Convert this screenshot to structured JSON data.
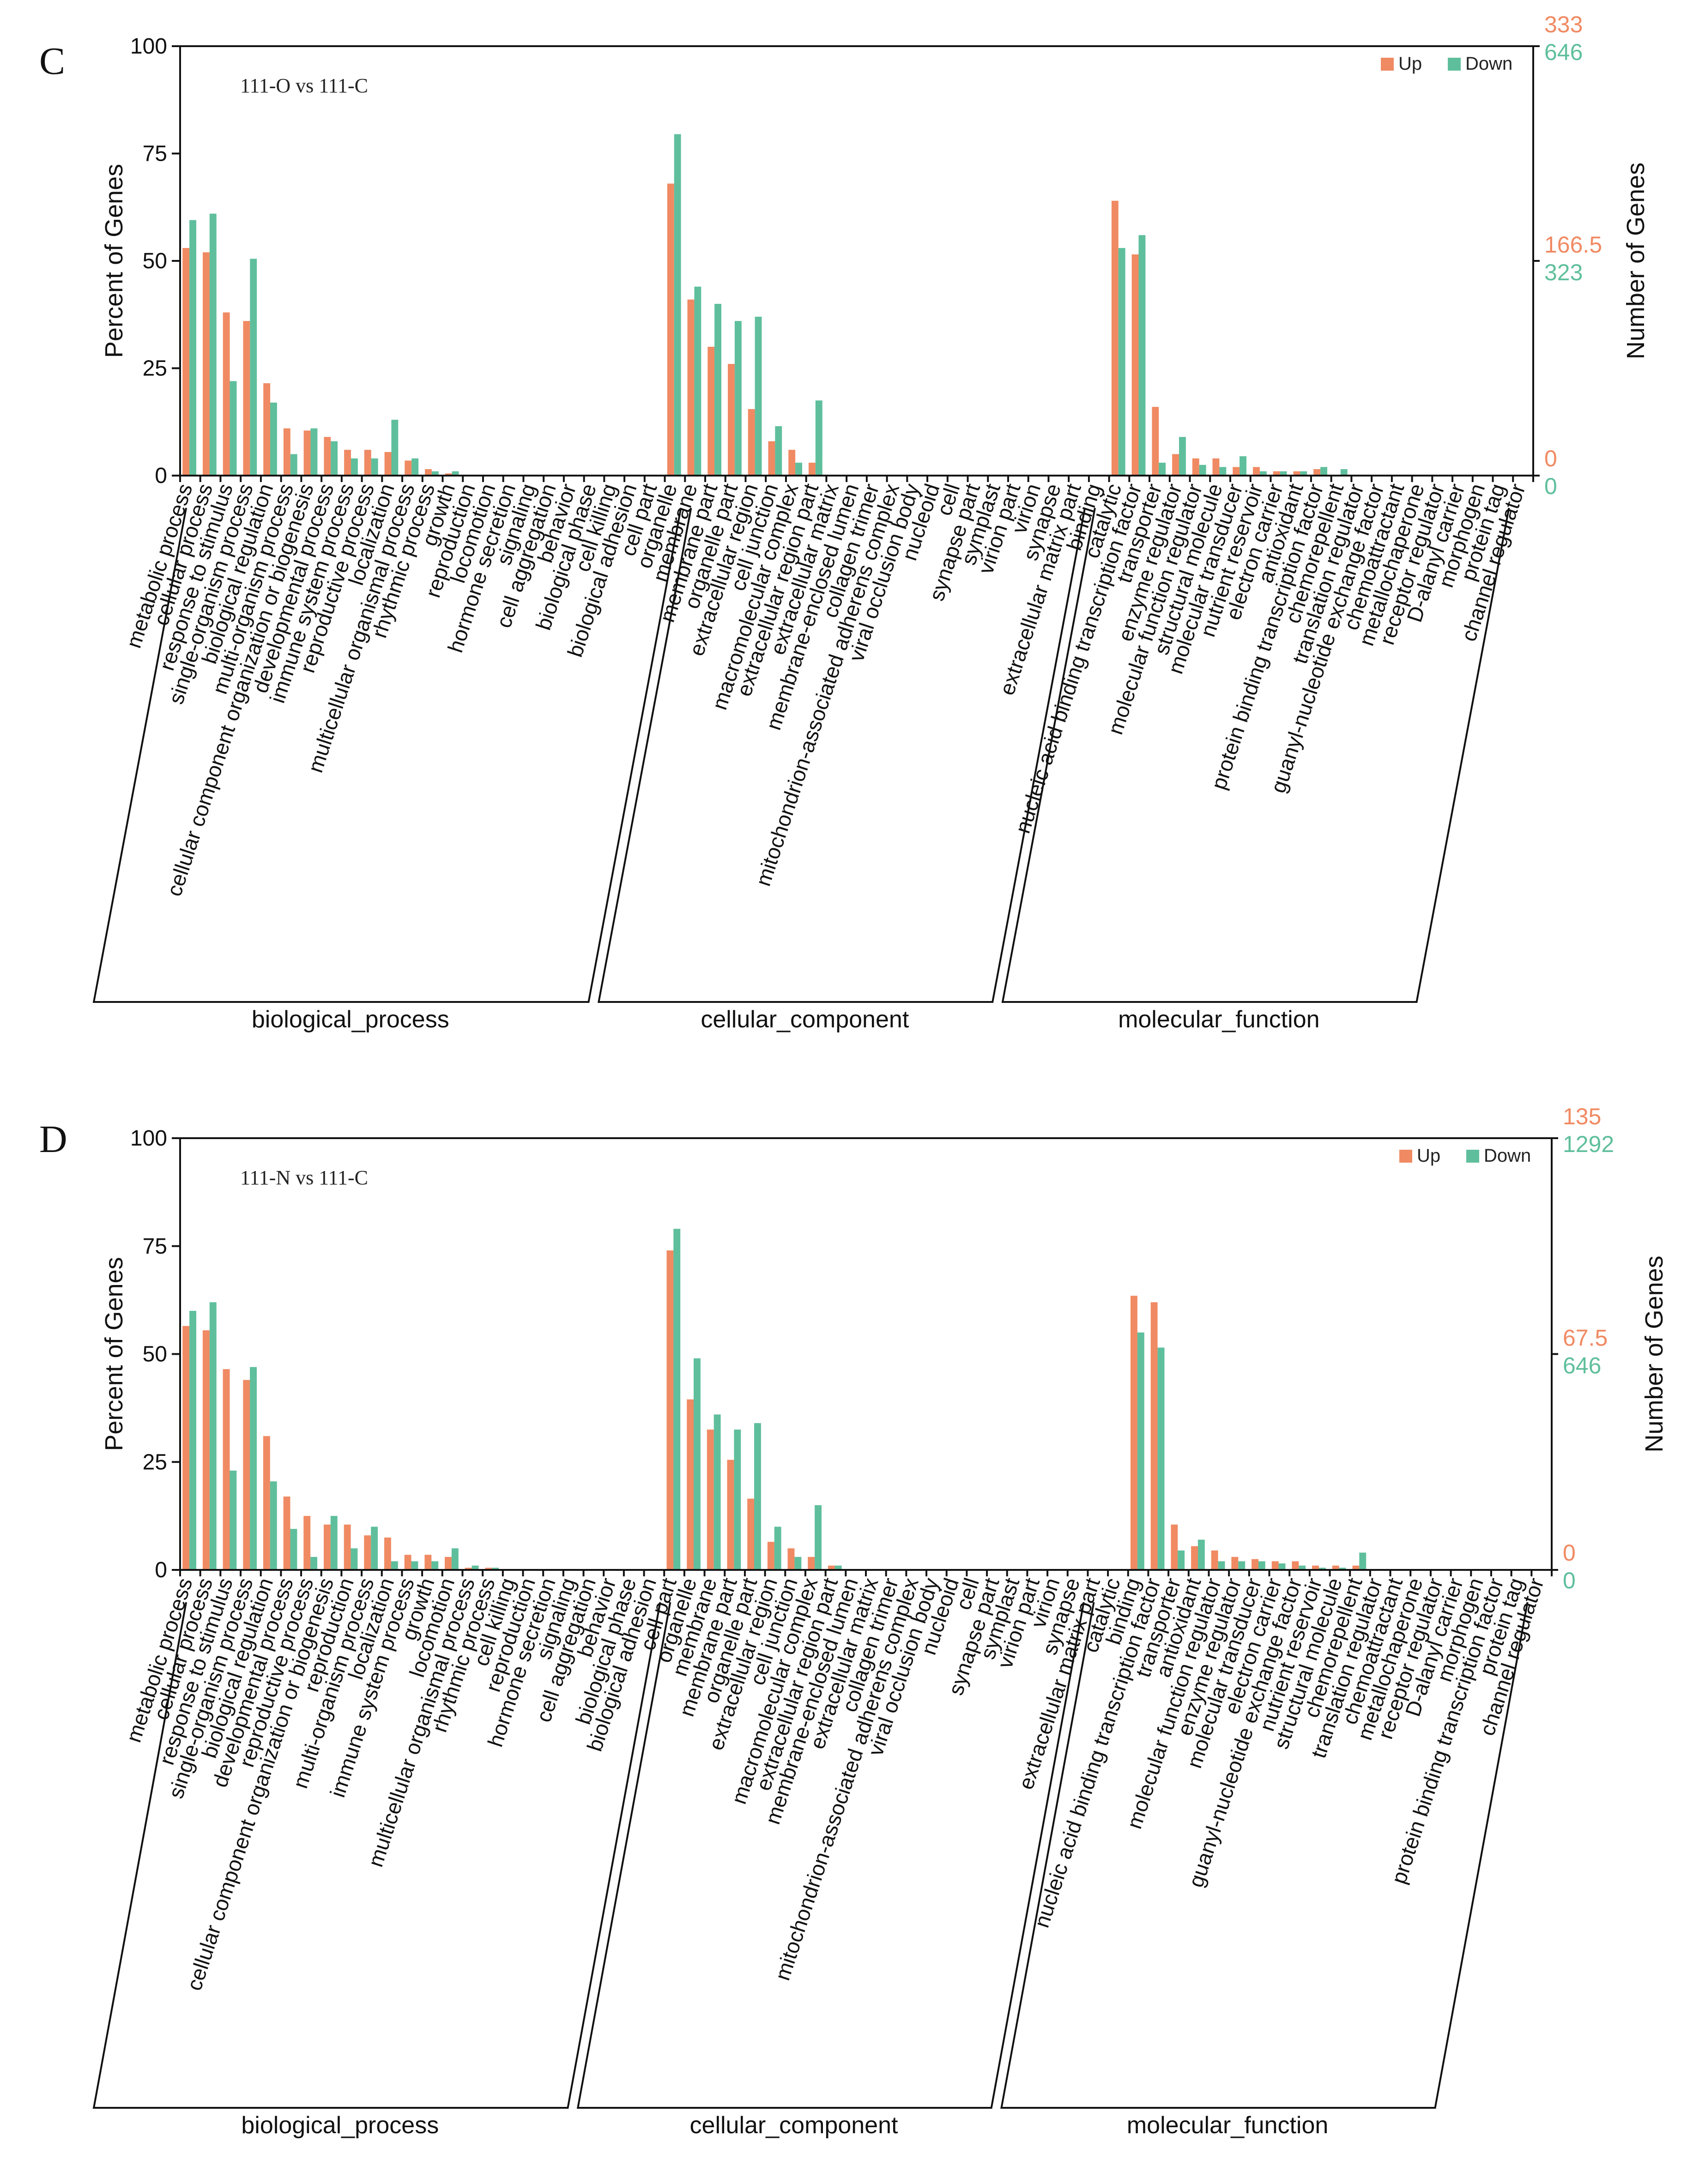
{
  "colors": {
    "up": "#f08a63",
    "down": "#5fbf9c"
  },
  "chart_data": [
    {
      "type": "bar",
      "panel": "C",
      "title": "111-O vs 111-C",
      "ylabel": "Percent of Genes",
      "y2label": "Number of Genes",
      "ylim": [
        0,
        100
      ],
      "yticks": [
        "0",
        "25",
        "50",
        "75",
        "100"
      ],
      "right_up_ticks": [
        "333",
        "166.5",
        "0"
      ],
      "right_down_ticks": [
        "646",
        "323",
        "0"
      ],
      "legend": [
        {
          "name": "Up"
        },
        {
          "name": "Down"
        }
      ],
      "groups": [
        {
          "name": "biological_process",
          "start": 0,
          "end": 24
        },
        {
          "name": "cellular_component",
          "start": 25,
          "end": 44
        },
        {
          "name": "molecular_function",
          "start": 45,
          "end": 65
        }
      ],
      "categories": [
        "metabolic process",
        "cellular process",
        "response to stimulus",
        "single-organism process",
        "biological regulation",
        "multi-organism process",
        "cellular component organization or biogenesis",
        "developmental process",
        "immune system process",
        "reproductive process",
        "localization",
        "multicellular organismal process",
        "rhythmic process",
        "growth",
        "reproduction",
        "locomotion",
        "hormone secretion",
        "signaling",
        "cell aggregation",
        "behavior",
        "biological phase",
        "cell killing",
        "biological adhesion",
        "cell part",
        "organelle",
        "membrane",
        "membrane part",
        "organelle part",
        "extracellular region",
        "cell junction",
        "macromolecular complex",
        "extracellular region part",
        "extracellular matrix",
        "membrane-enclosed lumen",
        "collagen trimer",
        "mitochondrion-associated adherens complex",
        "viral occlusion body",
        "nucleoid",
        "cell",
        "synapse part",
        "symplast",
        "virion part",
        "virion",
        "synapse",
        "extracellular matrix part",
        "binding",
        "catalytic",
        "nucleic acid binding transcription factor",
        "transporter",
        "enzyme regulator",
        "molecular function regulator",
        "structural molecule",
        "molecular transducer",
        "nutrient reservoir",
        "electron carrier",
        "antioxidant",
        "protein binding transcription factor",
        "chemorepellent",
        "translation regulator",
        "guanyl-nucleotide exchange factor",
        "chemoattractant",
        "metallochaperone",
        "receptor regulator",
        "D-alanyl carrier",
        "morphogen",
        "protein tag",
        "channel regulator"
      ],
      "series": [
        {
          "name": "Up",
          "values": [
            53,
            52,
            38,
            36,
            21.5,
            11,
            10.5,
            9,
            6,
            6,
            5.5,
            3.5,
            1.5,
            0.5,
            0,
            0,
            0,
            0,
            0,
            0,
            0,
            0,
            0,
            0,
            68,
            41,
            30,
            26,
            15.5,
            8,
            6,
            3,
            0,
            0,
            0,
            0,
            0,
            0,
            0,
            0,
            0,
            0,
            0,
            0,
            0,
            0,
            64,
            51.5,
            16,
            5,
            4,
            4,
            2,
            2,
            1,
            1,
            1.5,
            0,
            0,
            0,
            0,
            0,
            0,
            0,
            0,
            0,
            0
          ]
        },
        {
          "name": "Down",
          "values": [
            59.5,
            61,
            22,
            50.5,
            17,
            5,
            11,
            8,
            4,
            4,
            13,
            4,
            1,
            1,
            0,
            0,
            0,
            0,
            0,
            0,
            0,
            0,
            0,
            0,
            79.5,
            44,
            40,
            36,
            37,
            11.5,
            3,
            17.5,
            0,
            0,
            0,
            0,
            0,
            0,
            0,
            0,
            0,
            0,
            0,
            0,
            0,
            0,
            53,
            56,
            3,
            9,
            2.5,
            2,
            4.5,
            1,
            1,
            1,
            2,
            1.5,
            0,
            0,
            0,
            0,
            0,
            0,
            0,
            0,
            0
          ]
        }
      ]
    },
    {
      "type": "bar",
      "panel": "D",
      "title": "111-N vs 111-C",
      "ylabel": "Percent of Genes",
      "y2label": "Number of Genes",
      "ylim": [
        0,
        100
      ],
      "yticks": [
        "0",
        "25",
        "50",
        "75",
        "100"
      ],
      "right_up_ticks": [
        "135",
        "67.5",
        "0"
      ],
      "right_down_ticks": [
        "1292",
        "646",
        "0"
      ],
      "legend": [
        {
          "name": "Up"
        },
        {
          "name": "Down"
        }
      ],
      "groups": [
        {
          "name": "biological_process",
          "start": 0,
          "end": 23
        },
        {
          "name": "cellular_component",
          "start": 24,
          "end": 44
        },
        {
          "name": "molecular_function",
          "start": 45,
          "end": 66
        }
      ],
      "categories": [
        "metabolic process",
        "cellular process",
        "response to stimulus",
        "single-organism process",
        "biological regulation",
        "developmental process",
        "reproductive process",
        "cellular component organization or biogenesis",
        "reproduction",
        "multi-organism process",
        "localization",
        "immune system process",
        "growth",
        "locomotion",
        "multicellular organismal process",
        "rhythmic process",
        "cell killing",
        "reproduction",
        "hormone secretion",
        "signaling",
        "cell aggregation",
        "behavior",
        "biological phase",
        "biological adhesion",
        "cell part",
        "organelle",
        "membrane",
        "membrane part",
        "organelle part",
        "extracellular region",
        "cell junction",
        "macromolecular complex",
        "extracellular region part",
        "membrane-enclosed lumen",
        "extracellular matrix",
        "collagen trimer",
        "mitochondrion-associated adherens complex",
        "viral occlusion body",
        "nucleoid",
        "cell",
        "synapse part",
        "symplast",
        "virion part",
        "virion",
        "synapse",
        "extracellular matrix part",
        "catalytic",
        "binding",
        "nucleic acid binding transcription factor",
        "transporter",
        "antioxidant",
        "molecular function regulator",
        "enzyme regulator",
        "molecular transducer",
        "electron carrier",
        "guanyl-nucleotide exchange factor",
        "nutrient reservoir",
        "structural molecule",
        "chemorepellent",
        "translation regulator",
        "chemoattractant",
        "metallochaperone",
        "receptor regulator",
        "D-alanyl carrier",
        "morphogen",
        "protein binding transcription factor",
        "protein tag",
        "channel regulator"
      ],
      "series": [
        {
          "name": "Up",
          "values": [
            56.5,
            55.5,
            46.5,
            44,
            31,
            17,
            12.5,
            10.5,
            10.5,
            8,
            7.5,
            3.5,
            3.5,
            3,
            0.5,
            0.5,
            0,
            0,
            0,
            0,
            0,
            0,
            0,
            0,
            74,
            39.5,
            32.5,
            25.5,
            16.5,
            6.5,
            5,
            3,
            1,
            0,
            0,
            0,
            0,
            0,
            0,
            0,
            0,
            0,
            0,
            0,
            0,
            0,
            0,
            63.5,
            62,
            10.5,
            5.5,
            4.5,
            3,
            2.5,
            2,
            2,
            1,
            1,
            1,
            0,
            0,
            0,
            0,
            0,
            0,
            0,
            0,
            0
          ]
        },
        {
          "name": "Down",
          "values": [
            60,
            62,
            23,
            47,
            20.5,
            9.5,
            3,
            12.5,
            5,
            10,
            2,
            2,
            2,
            5,
            1,
            0.5,
            0,
            0,
            0,
            0,
            0,
            0,
            0,
            0,
            79,
            49,
            36,
            32.5,
            34,
            10,
            3,
            15,
            1,
            0,
            0,
            0,
            0,
            0,
            0,
            0,
            0,
            0,
            0,
            0,
            0,
            0,
            0,
            55,
            51.5,
            4.5,
            7,
            2,
            2,
            2,
            1.5,
            1,
            0.5,
            0.5,
            4,
            0,
            0,
            0,
            0,
            0,
            0,
            0,
            0,
            0
          ]
        }
      ]
    }
  ]
}
